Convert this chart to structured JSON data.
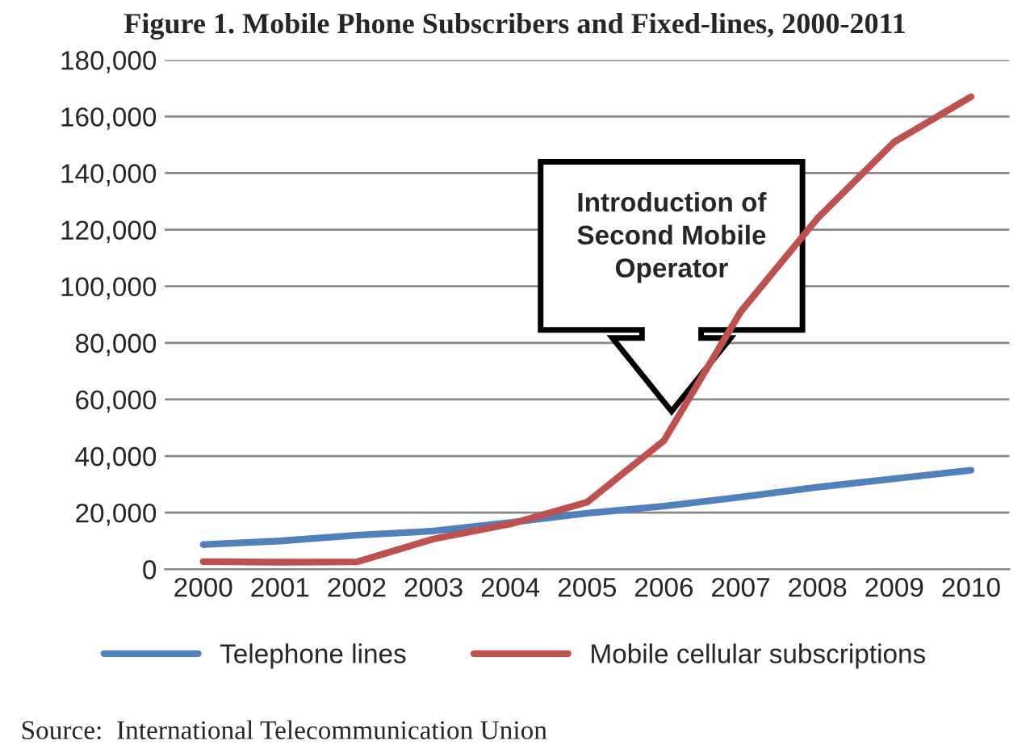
{
  "chart_data": {
    "type": "line",
    "title": "Figure 1. Mobile Phone Subscribers and Fixed-lines, 2000-2011",
    "categories": [
      "2000",
      "2001",
      "2002",
      "2003",
      "2004",
      "2005",
      "2006",
      "2007",
      "2008",
      "2009",
      "2010"
    ],
    "series": [
      {
        "name": "Telephone lines",
        "color": "#4f81bd",
        "values": [
          8700,
          10000,
          12000,
          13500,
          16500,
          19800,
          22300,
          25500,
          29000,
          32000,
          35000
        ]
      },
      {
        "name": "Mobile cellular subscriptions",
        "color": "#c0504d",
        "values": [
          2700,
          2500,
          2600,
          10700,
          16000,
          23700,
          45400,
          91000,
          124000,
          151000,
          167000
        ]
      }
    ],
    "ylim": [
      0,
      180000
    ],
    "yticks": [
      {
        "value": 0,
        "label": "0"
      },
      {
        "value": 20000,
        "label": "20,000"
      },
      {
        "value": 40000,
        "label": "40,000"
      },
      {
        "value": 60000,
        "label": "60,000"
      },
      {
        "value": 80000,
        "label": "80,000"
      },
      {
        "value": 100000,
        "label": "100,000"
      },
      {
        "value": 120000,
        "label": "120,000"
      },
      {
        "value": 140000,
        "label": "140,000"
      },
      {
        "value": 160000,
        "label": "160,000"
      },
      {
        "value": 180000,
        "label": "180,000"
      }
    ],
    "grid": "y",
    "legend": "bottom",
    "marker": "none",
    "line_style": "solid",
    "annotations": [
      "Introduction of\nSecond Mobile\nOperator",
      "Source:  International Telecommunication Union"
    ]
  }
}
